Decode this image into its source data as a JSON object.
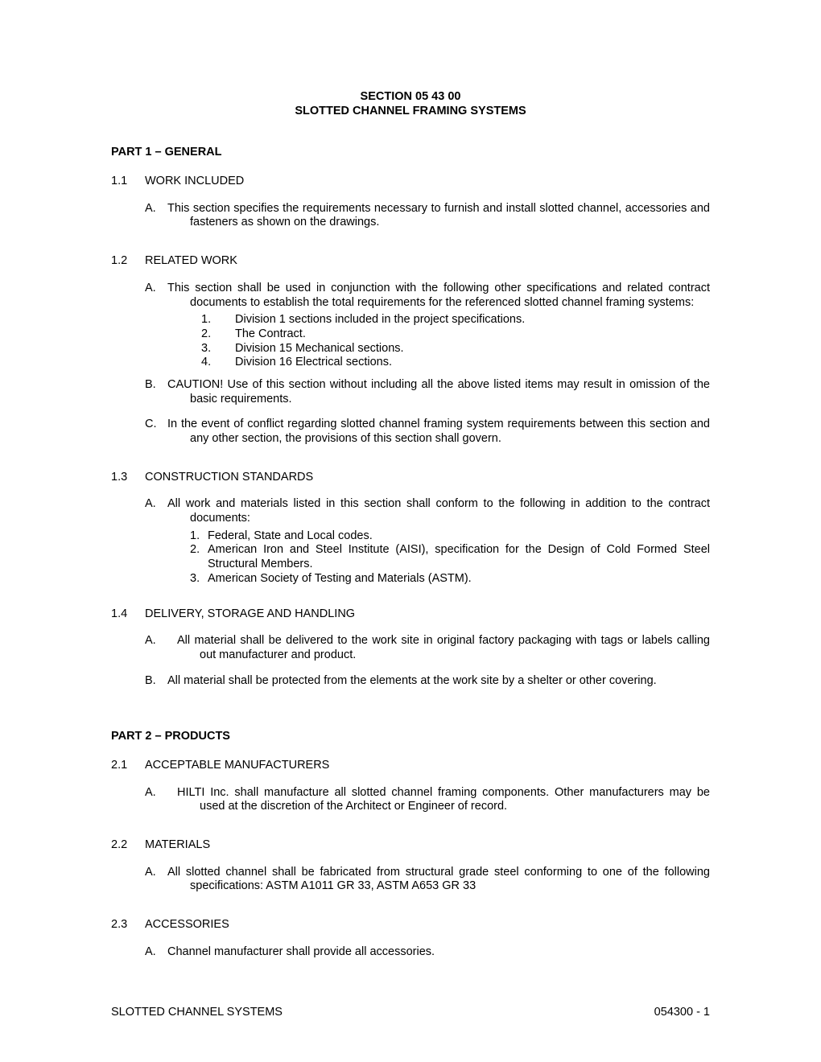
{
  "header": {
    "section_no": "SECTION 05 43 00",
    "title": "SLOTTED CHANNEL FRAMING SYSTEMS"
  },
  "parts": [
    {
      "heading": "PART 1 – GENERAL",
      "sections": [
        {
          "num": "1.1",
          "title": "WORK INCLUDED",
          "items": [
            {
              "letter": "A.",
              "text": "This section specifies the requirements necessary to furnish and install slotted channel, accessories and fasteners as shown on the drawings."
            }
          ]
        },
        {
          "num": "1.2",
          "title": "RELATED WORK",
          "items": [
            {
              "letter": "A.",
              "text": "This section shall be used in conjunction with the following other specifications and related contract documents to establish the total requirements for the referenced slotted channel framing systems:",
              "subs": [
                {
                  "n": "1.",
                  "t": "Division 1 sections included in the project specifications."
                },
                {
                  "n": "2.",
                  "t": "The Contract."
                },
                {
                  "n": "3.",
                  "t": "Division 15 Mechanical sections."
                },
                {
                  "n": "4.",
                  "t": "Division 16 Electrical sections."
                }
              ],
              "wide_sub_num": true
            },
            {
              "letter": "B.",
              "text": "CAUTION!  Use of this section without including all the above listed items may result in omission of the basic requirements."
            },
            {
              "letter": "C.",
              "text": "In the event of conflict regarding slotted channel framing system requirements between this section and any other section, the provisions of this section shall govern."
            }
          ]
        },
        {
          "num": "1.3",
          "title": "CONSTRUCTION STANDARDS",
          "items": [
            {
              "letter": "A.",
              "text": "All work and materials listed in this section shall conform to the following in addition to the contract documents:",
              "subs2": [
                {
                  "n": "1.",
                  "t": "Federal, State and Local codes."
                },
                {
                  "n": "2.",
                  "t": "American Iron and Steel Institute (AISI), specification for the Design of Cold Formed Steel Structural Members."
                },
                {
                  "n": "3.",
                  "t": "American Society of Testing and Materials (ASTM)."
                }
              ]
            }
          ]
        },
        {
          "num": "1.4",
          "title": "DELIVERY, STORAGE AND HANDLING",
          "items": [
            {
              "letter": "A.",
              "wide_letter": true,
              "text": "All material shall be delivered to the work site in original factory packaging with tags or labels calling out manufacturer and product."
            },
            {
              "letter": "B.",
              "text": "All material shall be protected from the elements at the work site by a shelter or other covering."
            }
          ]
        }
      ]
    },
    {
      "heading": "PART 2 – PRODUCTS",
      "sections": [
        {
          "num": "2.1",
          "title": "ACCEPTABLE MANUFACTURERS",
          "items": [
            {
              "letter": "A.",
              "wide_letter": true,
              "text": "HILTI Inc. shall manufacture all slotted channel framing components.  Other manufacturers may be used at the discretion of the Architect or Engineer of record."
            }
          ]
        },
        {
          "num": "2.2",
          "title": "MATERIALS",
          "items": [
            {
              "letter": "A.",
              "text": "All slotted channel shall be fabricated from structural grade steel conforming to one of the following specifications:  ASTM A1011 GR 33, ASTM A653 GR 33"
            }
          ]
        },
        {
          "num": "2.3",
          "title": "ACCESSORIES",
          "items": [
            {
              "letter": "A.",
              "text": "Channel manufacturer shall provide all accessories."
            }
          ]
        }
      ]
    }
  ],
  "footer": {
    "left": "SLOTTED CHANNEL SYSTEMS",
    "right": "054300 - 1"
  }
}
